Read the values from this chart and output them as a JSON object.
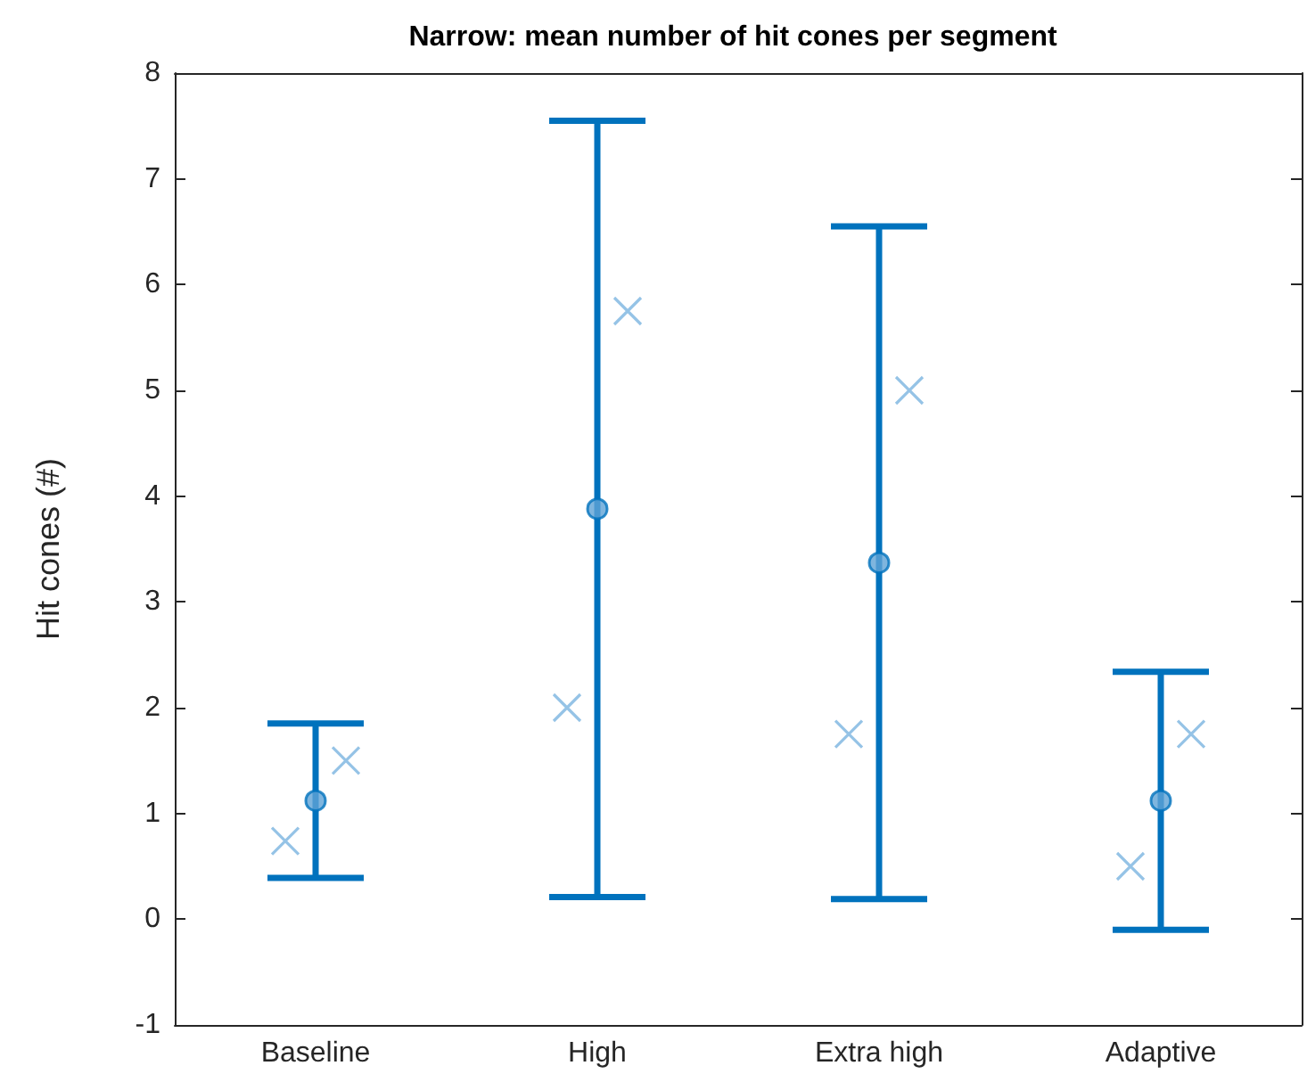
{
  "chart_data": {
    "type": "scatter",
    "title": "Narrow: mean number of hit cones per segment",
    "ylabel": "Hit cones (#)",
    "categories": [
      "Baseline",
      "High",
      "Extra high",
      "Adaptive"
    ],
    "ylim": [
      -1,
      8
    ],
    "yticks": [
      -1,
      0,
      1,
      2,
      3,
      4,
      5,
      6,
      7,
      8
    ],
    "series": [
      {
        "marker": "circle",
        "color": "#0072bd",
        "values": [
          1.12,
          3.88,
          3.37,
          1.12
        ],
        "errors": [
          0.73,
          3.67,
          3.18,
          1.22
        ]
      },
      {
        "marker": "cross",
        "color": "#7ab4e0",
        "x": [
          "Baseline",
          "High",
          "Extra high",
          "Adaptive"
        ],
        "values": [
          0.74,
          2.0,
          1.75,
          0.5
        ]
      },
      {
        "marker": "cross",
        "color": "#7ab4e0",
        "x": [
          "Baseline",
          "High",
          "Extra high",
          "Adaptive"
        ],
        "values": [
          1.5,
          5.75,
          5.0,
          1.75
        ]
      }
    ]
  }
}
